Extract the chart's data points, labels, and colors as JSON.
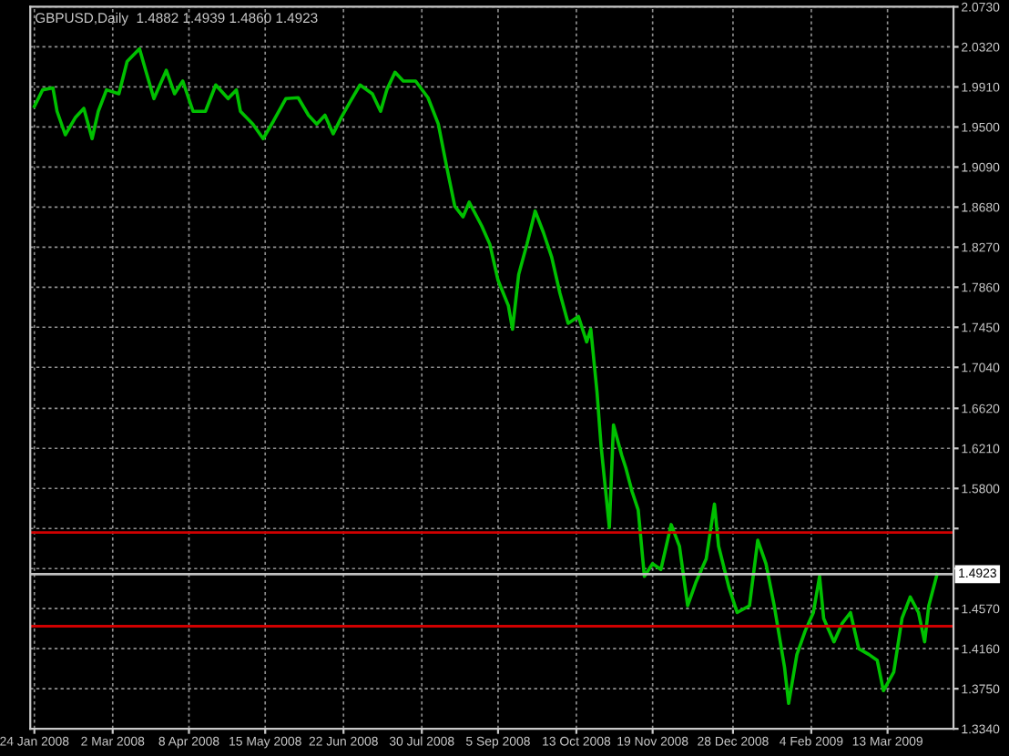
{
  "chart_data": {
    "type": "line",
    "title": "GBPUSD,Daily  1.4882 1.4939 1.4860 1.4923",
    "series": [
      {
        "color": "#00c000",
        "values": [
          1.971,
          1.988,
          1.99,
          1.966,
          1.942,
          1.96,
          1.969,
          1.938,
          1.966,
          1.988,
          1.984,
          2.017,
          2.03,
          2.008,
          1.979,
          2.008,
          1.984,
          1.997,
          1.966,
          1.966,
          1.993,
          1.979,
          1.988,
          1.966,
          1.953,
          1.938,
          1.956,
          1.979,
          1.98,
          1.962,
          1.953,
          1.962,
          1.943,
          1.96,
          1.975,
          1.993,
          1.984,
          1.966,
          1.988,
          2.006,
          1.997,
          1.997,
          1.98,
          1.953,
          1.91,
          1.869,
          1.858,
          1.873,
          1.849,
          1.83,
          1.793,
          1.767,
          1.743,
          1.799,
          1.83,
          1.864,
          1.842,
          1.817,
          1.78,
          1.749,
          1.756,
          1.73,
          1.743,
          1.679,
          1.623,
          1.54,
          1.645,
          1.614,
          1.601,
          1.577,
          1.558,
          1.49,
          1.503,
          1.497,
          1.543,
          1.521,
          1.46,
          1.484,
          1.508,
          1.564,
          1.521,
          1.479,
          1.453,
          1.46,
          1.527,
          1.503,
          1.46,
          1.397,
          1.36,
          1.41,
          1.434,
          1.453,
          1.49,
          1.447,
          1.423,
          1.442,
          1.453,
          1.416,
          1.41,
          1.404,
          1.373,
          1.392,
          1.447,
          1.469,
          1.453,
          1.423,
          1.46,
          1.492
        ]
      }
    ],
    "x": [
      "2008-01-24",
      "2008-01-28",
      "2008-02-02",
      "2008-02-04",
      "2008-02-08",
      "2008-02-13",
      "2008-02-17",
      "2008-02-21",
      "2008-02-24",
      "2008-02-28",
      "2008-03-05",
      "2008-03-09",
      "2008-03-15",
      "2008-03-18",
      "2008-03-22",
      "2008-03-28",
      "2008-04-01",
      "2008-04-05",
      "2008-04-10",
      "2008-04-16",
      "2008-04-21",
      "2008-04-27",
      "2008-05-01",
      "2008-05-03",
      "2008-05-09",
      "2008-05-14",
      "2008-05-19",
      "2008-05-25",
      "2008-05-31",
      "2008-06-05",
      "2008-06-09",
      "2008-06-13",
      "2008-06-17",
      "2008-06-21",
      "2008-06-25",
      "2008-06-30",
      "2008-07-06",
      "2008-07-10",
      "2008-07-13",
      "2008-07-17",
      "2008-07-21",
      "2008-07-27",
      "2008-08-02",
      "2008-08-07",
      "2008-08-11",
      "2008-08-15",
      "2008-08-19",
      "2008-08-22",
      "2008-08-28",
      "2008-09-01",
      "2008-09-05",
      "2008-09-10",
      "2008-09-12",
      "2008-09-15",
      "2008-09-19",
      "2008-09-23",
      "2008-09-27",
      "2008-10-01",
      "2008-10-05",
      "2008-10-09",
      "2008-10-14",
      "2008-10-18",
      "2008-10-20",
      "2008-10-23",
      "2008-10-25",
      "2008-10-29",
      "2008-10-31",
      "2008-11-04",
      "2008-11-06",
      "2008-11-09",
      "2008-11-12",
      "2008-11-15",
      "2008-11-19",
      "2008-11-23",
      "2008-11-28",
      "2008-12-02",
      "2008-12-06",
      "2008-12-10",
      "2008-12-15",
      "2008-12-19",
      "2008-12-21",
      "2008-12-26",
      "2008-12-30",
      "2009-01-05",
      "2009-01-09",
      "2009-01-13",
      "2009-01-17",
      "2009-01-22",
      "2009-01-24",
      "2009-01-28",
      "2009-02-01",
      "2009-02-05",
      "2009-02-08",
      "2009-02-10",
      "2009-02-15",
      "2009-02-19",
      "2009-02-23",
      "2009-02-27",
      "2009-03-04",
      "2009-03-08",
      "2009-03-11",
      "2009-03-16",
      "2009-03-20",
      "2009-03-24",
      "2009-03-28",
      "2009-03-31",
      "2009-04-02",
      "2009-04-06"
    ],
    "xlim": [
      "2008-01-22",
      "2009-04-14"
    ],
    "xticks": [
      {
        "value": "2008-01-24",
        "label": "24 Jan 2008"
      },
      {
        "value": "2008-03-02",
        "label": "2 Mar 2008"
      },
      {
        "value": "2008-04-08",
        "label": "8 Apr 2008"
      },
      {
        "value": "2008-05-15",
        "label": "15 May 2008"
      },
      {
        "value": "2008-06-22",
        "label": "22 Jun 2008"
      },
      {
        "value": "2008-07-30",
        "label": "30 Jul 2008"
      },
      {
        "value": "2008-09-05",
        "label": "5 Sep 2008"
      },
      {
        "value": "2008-10-13",
        "label": "13 Oct 2008"
      },
      {
        "value": "2008-11-19",
        "label": "19 Nov 2008"
      },
      {
        "value": "2008-12-28",
        "label": "28 Dec 2008"
      },
      {
        "value": "2009-02-04",
        "label": "4 Feb 2009"
      },
      {
        "value": "2009-03-13",
        "label": "13 Mar 2009"
      }
    ],
    "ylim": [
      1.334,
      2.073
    ],
    "yticks": [
      {
        "value": 2.073,
        "label": "2.0730"
      },
      {
        "value": 2.032,
        "label": "2.0320"
      },
      {
        "value": 1.991,
        "label": "1.9910"
      },
      {
        "value": 1.95,
        "label": "1.9500"
      },
      {
        "value": 1.909,
        "label": "1.9090"
      },
      {
        "value": 1.868,
        "label": "1.8680"
      },
      {
        "value": 1.827,
        "label": "1.8270"
      },
      {
        "value": 1.786,
        "label": "1.7860"
      },
      {
        "value": 1.745,
        "label": "1.7450"
      },
      {
        "value": 1.704,
        "label": "1.7040"
      },
      {
        "value": 1.662,
        "label": "1.6620"
      },
      {
        "value": 1.621,
        "label": "1.6210"
      },
      {
        "value": 1.58,
        "label": "1.5800"
      },
      {
        "value": 1.539,
        "label": null
      },
      {
        "value": 1.498,
        "label": null
      },
      {
        "value": 1.457,
        "label": "1.4570"
      },
      {
        "value": 1.416,
        "label": "1.4160"
      },
      {
        "value": 1.375,
        "label": "1.3750"
      },
      {
        "value": 1.334,
        "label": "1.3340"
      }
    ],
    "ref_lines": [
      {
        "axis": "y",
        "value": 1.535,
        "label": null,
        "color": "#d00000"
      },
      {
        "axis": "y",
        "value": 1.439,
        "label": null,
        "color": "#d00000"
      },
      {
        "axis": "y",
        "value": 1.4923,
        "label": "1.4923",
        "color": "#c0c0c0"
      }
    ],
    "grid": true,
    "legend": false,
    "marker": "none",
    "line_style": "solid"
  }
}
